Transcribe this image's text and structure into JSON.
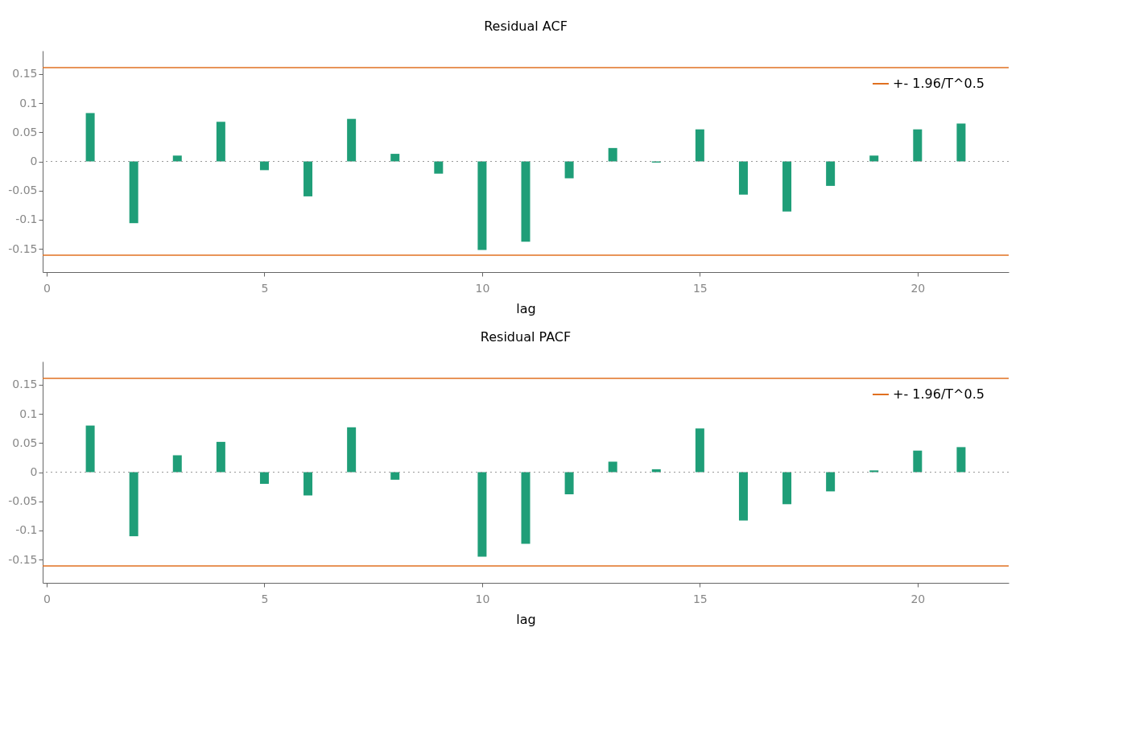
{
  "chart_data": [
    {
      "type": "bar",
      "title": "Residual ACF",
      "xlabel": "lag",
      "x": [
        1,
        2,
        3,
        4,
        5,
        6,
        7,
        8,
        9,
        10,
        11,
        12,
        13,
        14,
        15,
        16,
        17,
        18,
        19,
        20,
        21
      ],
      "series": [
        {
          "color": "#1f9e78",
          "values": [
            0.083,
            -0.106,
            0.01,
            0.068,
            -0.015,
            -0.06,
            0.073,
            0.013,
            -0.021,
            -0.152,
            -0.138,
            -0.029,
            0.023,
            -0.002,
            0.055,
            -0.057,
            -0.086,
            -0.042,
            0.01,
            0.055,
            0.065
          ]
        }
      ],
      "xlim": [
        0,
        22
      ],
      "xticks": [
        0,
        5,
        10,
        15,
        20
      ],
      "ylim": [
        -0.19,
        0.19
      ],
      "yticks": [
        -0.15,
        -0.1,
        -0.05,
        0,
        0.05,
        0.1,
        0.15
      ],
      "ref_lines": [
        {
          "axis": "y",
          "value": 0.161,
          "label": "+- 1.96/T^0.5",
          "color": "#e07020"
        },
        {
          "axis": "y",
          "value": -0.161,
          "color": "#e07020"
        },
        {
          "axis": "y",
          "value": 0,
          "color": "#999999",
          "line_style": "dotted"
        }
      ],
      "grid": false,
      "legend": "top right"
    },
    {
      "type": "bar",
      "title": "Residual PACF",
      "xlabel": "lag",
      "x": [
        1,
        2,
        3,
        4,
        5,
        6,
        7,
        8,
        9,
        10,
        11,
        12,
        13,
        14,
        15,
        16,
        17,
        18,
        19,
        20,
        21
      ],
      "series": [
        {
          "color": "#1f9e78",
          "values": [
            0.08,
            -0.11,
            0.029,
            0.052,
            -0.02,
            -0.04,
            0.077,
            -0.013,
            0.0,
            -0.145,
            -0.123,
            -0.038,
            0.018,
            0.005,
            0.075,
            -0.083,
            -0.055,
            -0.033,
            0.003,
            0.037,
            0.043
          ]
        }
      ],
      "xlim": [
        0,
        22
      ],
      "xticks": [
        0,
        5,
        10,
        15,
        20
      ],
      "ylim": [
        -0.19,
        0.19
      ],
      "yticks": [
        -0.15,
        -0.1,
        -0.05,
        0,
        0.05,
        0.1,
        0.15
      ],
      "ref_lines": [
        {
          "axis": "y",
          "value": 0.161,
          "label": "+- 1.96/T^0.5",
          "color": "#e07020"
        },
        {
          "axis": "y",
          "value": -0.161,
          "color": "#e07020"
        },
        {
          "axis": "y",
          "value": 0,
          "color": "#999999",
          "line_style": "dotted"
        }
      ],
      "grid": false,
      "legend": "top right"
    }
  ]
}
